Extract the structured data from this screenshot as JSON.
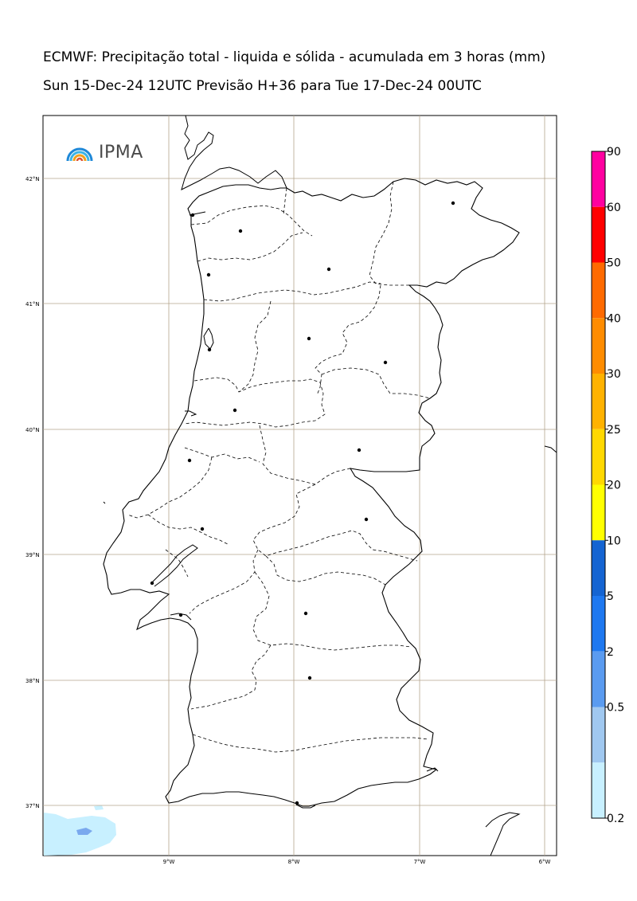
{
  "header": {
    "title_line1": "ECMWF: Precipitação total - liquida e sólida - acumulada em 3 horas (mm)",
    "title_line2": "Sun 15-Dec-24 12UTC Previsão H+36 para Tue 17-Dec-24 00UTC"
  },
  "logo": {
    "text": "IPMA",
    "icon": "ipma-rainbow-icon"
  },
  "map": {
    "latitude_labels": [
      "42°N",
      "41°N",
      "40°N",
      "39°N",
      "38°N",
      "37°N"
    ],
    "longitude_labels": [
      "9°W",
      "8°W",
      "7°W",
      "6°W"
    ],
    "grid": true,
    "gridline_color": "#b4a58c"
  },
  "colorbar": {
    "labels": [
      "90",
      "60",
      "50",
      "40",
      "30",
      "25",
      "20",
      "10",
      "5",
      "2",
      "0.5",
      "0.2"
    ],
    "colors": [
      "#ff00a0",
      "#ff0000",
      "#ff6a00",
      "#ff8c00",
      "#ffb200",
      "#ffd800",
      "#ffff00",
      "#1464d2",
      "#1e78f0",
      "#5a9bf0",
      "#a0c8f0",
      "#c8f0ff"
    ]
  }
}
